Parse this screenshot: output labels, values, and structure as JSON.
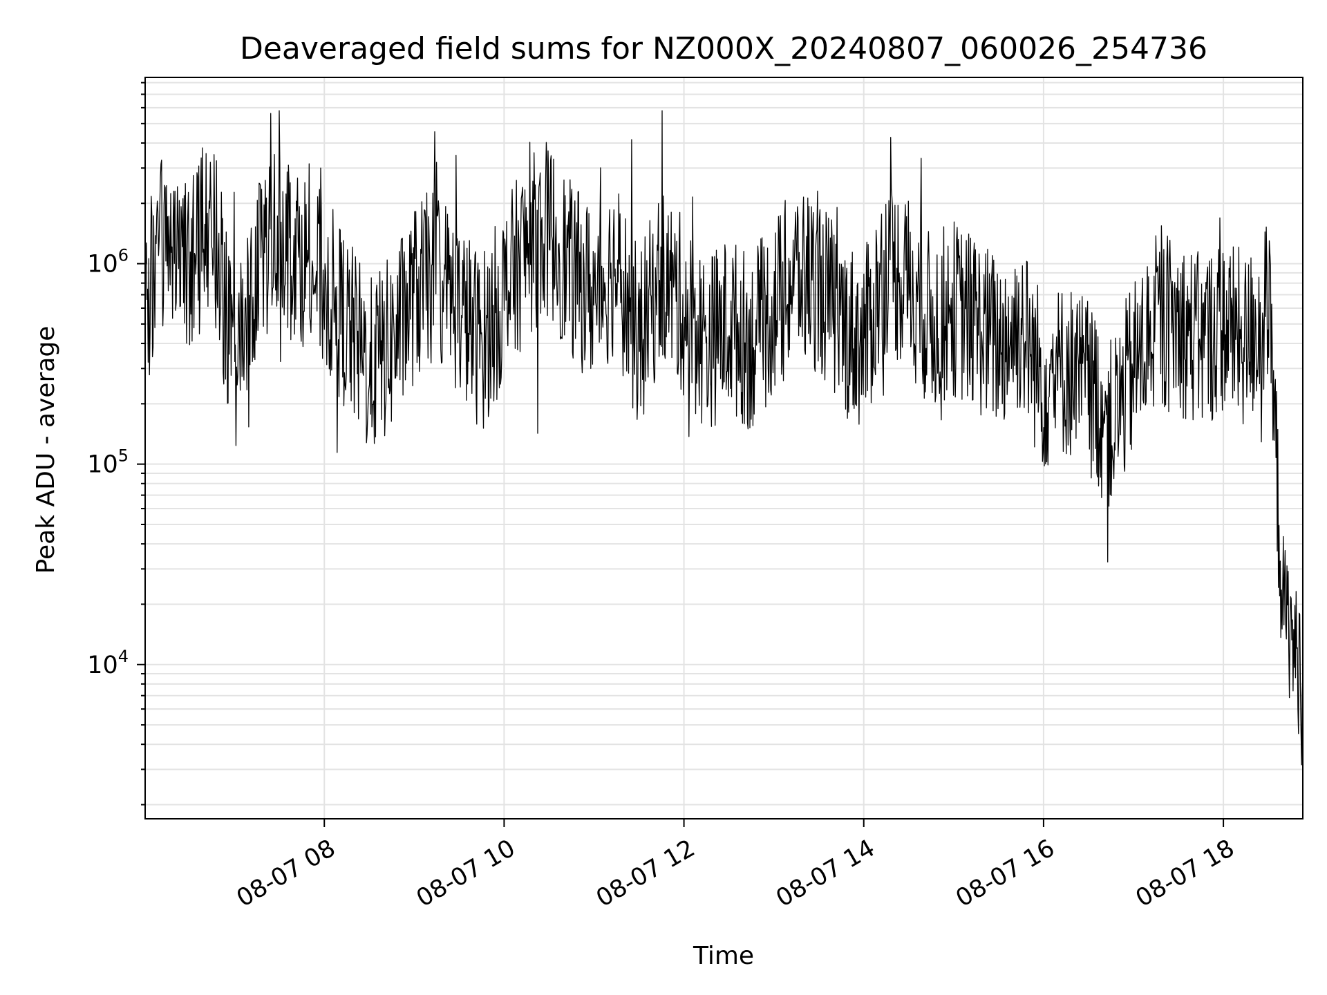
{
  "chart_data": {
    "type": "line",
    "title": "Deaveraged field sums for NZ000X_20240807_060026_254736",
    "xlabel": "Time",
    "ylabel": "Peak ADU - average",
    "yscale": "log",
    "ylim": [
      1700,
      8500000
    ],
    "xlim": [
      "2024-08-07 06:00:26",
      "2024-08-07 18:53:00"
    ],
    "grid": true,
    "line_color": "#000000",
    "x_ticks": [
      "08-07 08",
      "08-07 10",
      "08-07 12",
      "08-07 14",
      "08-07 16",
      "08-07 18"
    ],
    "y_ticks": [
      {
        "base": "10",
        "exp": "4",
        "value": 10000
      },
      {
        "base": "10",
        "exp": "5",
        "value": 100000
      },
      {
        "base": "10",
        "exp": "6",
        "value": 1000000
      }
    ],
    "series": [
      {
        "points": [
          [
            "2024-08-07 06:00",
            600000
          ],
          [
            "2024-08-07 06:15",
            1500000
          ],
          [
            "2024-08-07 06:30",
            900000
          ],
          [
            "2024-08-07 06:45",
            1800000
          ],
          [
            "2024-08-07 07:00",
            300000
          ],
          [
            "2024-08-07 07:15",
            1000000
          ],
          [
            "2024-08-07 07:30",
            1600000
          ],
          [
            "2024-08-07 07:45",
            1100000
          ],
          [
            "2024-08-07 08:00",
            800000
          ],
          [
            "2024-08-07 08:15",
            500000
          ],
          [
            "2024-08-07 08:30",
            300000
          ],
          [
            "2024-08-07 08:45",
            400000
          ],
          [
            "2024-08-07 09:00",
            700000
          ],
          [
            "2024-08-07 09:15",
            900000
          ],
          [
            "2024-08-07 09:30",
            600000
          ],
          [
            "2024-08-07 09:45",
            400000
          ],
          [
            "2024-08-07 10:00",
            700000
          ],
          [
            "2024-08-07 10:15",
            1200000
          ],
          [
            "2024-08-07 10:30",
            1500000
          ],
          [
            "2024-08-07 10:45",
            900000
          ],
          [
            "2024-08-07 11:00",
            700000
          ],
          [
            "2024-08-07 11:15",
            1000000
          ],
          [
            "2024-08-07 11:30",
            400000
          ],
          [
            "2024-08-07 11:45",
            900000
          ],
          [
            "2024-08-07 12:00",
            600000
          ],
          [
            "2024-08-07 12:15",
            400000
          ],
          [
            "2024-08-07 12:30",
            500000
          ],
          [
            "2024-08-07 12:45",
            400000
          ],
          [
            "2024-08-07 13:00",
            600000
          ],
          [
            "2024-08-07 13:15",
            900000
          ],
          [
            "2024-08-07 13:30",
            800000
          ],
          [
            "2024-08-07 13:45",
            500000
          ],
          [
            "2024-08-07 14:00",
            400000
          ],
          [
            "2024-08-07 14:15",
            1000000
          ],
          [
            "2024-08-07 14:30",
            800000
          ],
          [
            "2024-08-07 14:45",
            500000
          ],
          [
            "2024-08-07 15:00",
            600000
          ],
          [
            "2024-08-07 15:15",
            500000
          ],
          [
            "2024-08-07 15:30",
            400000
          ],
          [
            "2024-08-07 15:45",
            500000
          ],
          [
            "2024-08-07 16:00",
            250000
          ],
          [
            "2024-08-07 16:15",
            300000
          ],
          [
            "2024-08-07 16:30",
            250000
          ],
          [
            "2024-08-07 16:45",
            150000
          ],
          [
            "2024-08-07 17:00",
            300000
          ],
          [
            "2024-08-07 17:15",
            500000
          ],
          [
            "2024-08-07 17:30",
            500000
          ],
          [
            "2024-08-07 17:45",
            400000
          ],
          [
            "2024-08-07 18:00",
            500000
          ],
          [
            "2024-08-07 18:15",
            400000
          ],
          [
            "2024-08-07 18:30",
            600000
          ],
          [
            "2024-08-07 18:40",
            20000
          ],
          [
            "2024-08-07 18:50",
            10000
          ]
        ]
      }
    ]
  }
}
